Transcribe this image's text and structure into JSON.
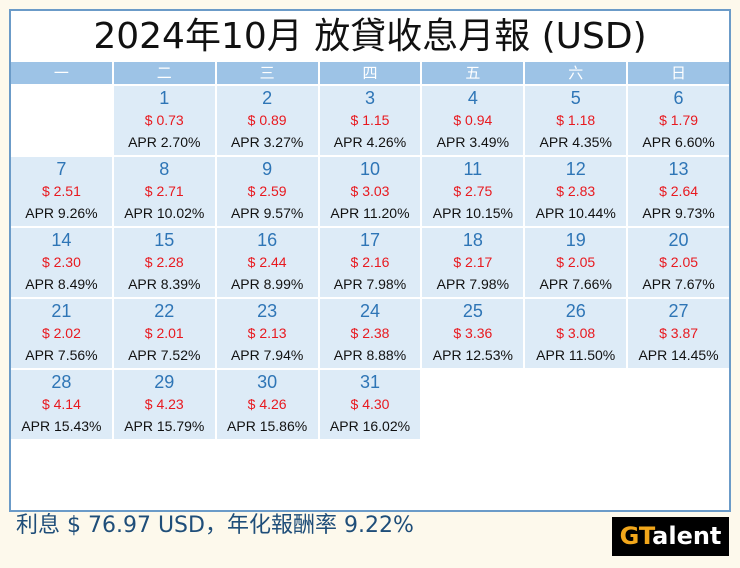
{
  "title": "2024年10月 放貸收息月報 (USD)",
  "weekdays": [
    "一",
    "二",
    "三",
    "四",
    "五",
    "六",
    "日"
  ],
  "calendar": {
    "leading_empty_cells": 1,
    "days": [
      {
        "day": "1",
        "amount": "$ 0.73",
        "apr": "APR 2.70%"
      },
      {
        "day": "2",
        "amount": "$ 0.89",
        "apr": "APR 3.27%"
      },
      {
        "day": "3",
        "amount": "$ 1.15",
        "apr": "APR 4.26%"
      },
      {
        "day": "4",
        "amount": "$ 0.94",
        "apr": "APR 3.49%"
      },
      {
        "day": "5",
        "amount": "$ 1.18",
        "apr": "APR 4.35%"
      },
      {
        "day": "6",
        "amount": "$ 1.79",
        "apr": "APR 6.60%"
      },
      {
        "day": "7",
        "amount": "$ 2.51",
        "apr": "APR 9.26%"
      },
      {
        "day": "8",
        "amount": "$ 2.71",
        "apr": "APR 10.02%"
      },
      {
        "day": "9",
        "amount": "$ 2.59",
        "apr": "APR 9.57%"
      },
      {
        "day": "10",
        "amount": "$ 3.03",
        "apr": "APR 11.20%"
      },
      {
        "day": "11",
        "amount": "$ 2.75",
        "apr": "APR 10.15%"
      },
      {
        "day": "12",
        "amount": "$ 2.83",
        "apr": "APR 10.44%"
      },
      {
        "day": "13",
        "amount": "$ 2.64",
        "apr": "APR 9.73%"
      },
      {
        "day": "14",
        "amount": "$ 2.30",
        "apr": "APR 8.49%"
      },
      {
        "day": "15",
        "amount": "$ 2.28",
        "apr": "APR 8.39%"
      },
      {
        "day": "16",
        "amount": "$ 2.44",
        "apr": "APR 8.99%"
      },
      {
        "day": "17",
        "amount": "$ 2.16",
        "apr": "APR 7.98%"
      },
      {
        "day": "18",
        "amount": "$ 2.17",
        "apr": "APR 7.98%"
      },
      {
        "day": "19",
        "amount": "$ 2.05",
        "apr": "APR 7.66%"
      },
      {
        "day": "20",
        "amount": "$ 2.05",
        "apr": "APR 7.67%"
      },
      {
        "day": "21",
        "amount": "$ 2.02",
        "apr": "APR 7.56%"
      },
      {
        "day": "22",
        "amount": "$ 2.01",
        "apr": "APR 7.52%"
      },
      {
        "day": "23",
        "amount": "$ 2.13",
        "apr": "APR 7.94%"
      },
      {
        "day": "24",
        "amount": "$ 2.38",
        "apr": "APR 8.88%"
      },
      {
        "day": "25",
        "amount": "$ 3.36",
        "apr": "APR 12.53%"
      },
      {
        "day": "26",
        "amount": "$ 3.08",
        "apr": "APR 11.50%"
      },
      {
        "day": "27",
        "amount": "$ 3.87",
        "apr": "APR 14.45%"
      },
      {
        "day": "28",
        "amount": "$ 4.14",
        "apr": "APR 15.43%"
      },
      {
        "day": "29",
        "amount": "$ 4.23",
        "apr": "APR 15.79%"
      },
      {
        "day": "30",
        "amount": "$ 4.26",
        "apr": "APR 15.86%"
      },
      {
        "day": "31",
        "amount": "$ 4.30",
        "apr": "APR 16.02%"
      }
    ]
  },
  "summary": "利息 $ 76.97 USD，年化報酬率 9.22%",
  "logo": {
    "highlight": "GT",
    "rest": "alent"
  },
  "colors": {
    "frame_border": "#6b9bc8",
    "header_bg": "#9dc3e6",
    "cell_bg": "#ddebf7",
    "day_number": "#2e75b6",
    "amount": "#e8191f",
    "summary_text": "#1f4e79",
    "logo_accent": "#f2a71b"
  }
}
